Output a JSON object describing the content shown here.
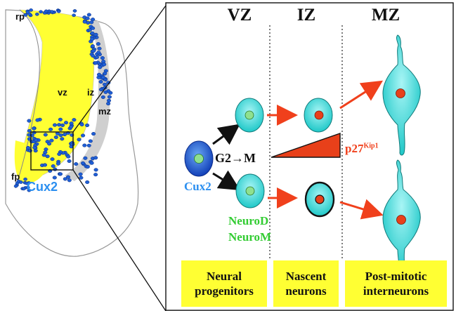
{
  "tissue": {
    "labels": {
      "rp": "rp",
      "vz": "vz",
      "iz": "iz",
      "mz": "mz",
      "fp": "fp",
      "cux2": "Cux2"
    }
  },
  "diagram": {
    "zones": [
      "VZ",
      "IZ",
      "MZ"
    ],
    "progenitor_label": "Cux2",
    "cycle_label": "G2→M",
    "gradient_label": "p27",
    "gradient_superscript": "Kip1",
    "neuro_d": "NeuroD",
    "neuro_m": "NeuroM",
    "chips": [
      {
        "line1": "Neural",
        "line2": "progenitors"
      },
      {
        "line1": "Nascent",
        "line2": "neurons"
      },
      {
        "line1": "Post-mitotic",
        "line2": "interneurons"
      }
    ]
  },
  "colors": {
    "cell_cyan": "#33d6d6",
    "progenitor_blue": "#1f5fd6",
    "nucleus_green": "#8fe08f",
    "nucleus_red": "#e8401a",
    "arrow_orange": "#f0401c",
    "label_blue": "#2b8ff0",
    "label_green": "#33cc33",
    "chip_yellow": "#ffff33",
    "tube_yellow": "#ffff33"
  }
}
